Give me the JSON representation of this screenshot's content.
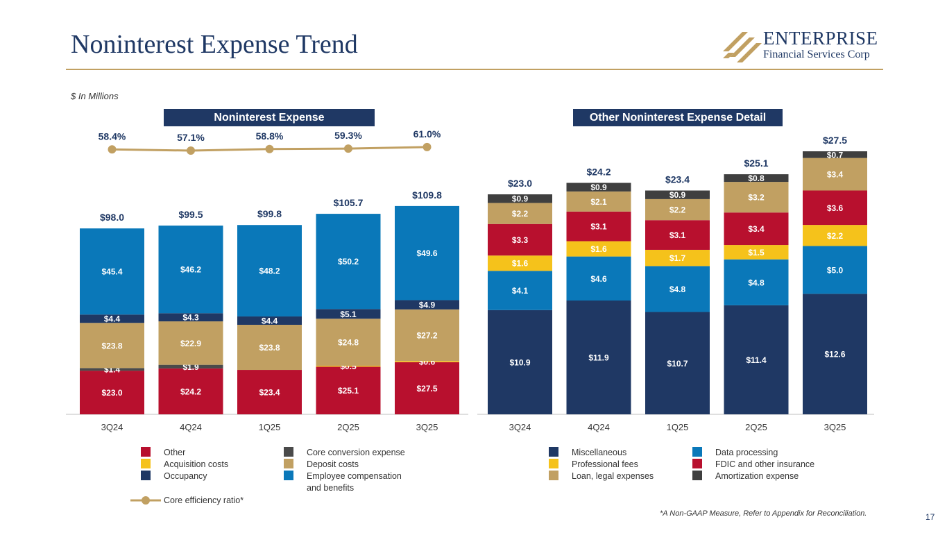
{
  "page": {
    "title": "Noninterest Expense Trend",
    "units_note": "$ In Millions",
    "footnote": "*A Non-GAAP Measure, Refer to Appendix for Reconciliation.",
    "page_number": "17"
  },
  "logo": {
    "name": "ENTERPRISE",
    "subtitle": "Financial Services Corp"
  },
  "colors": {
    "other": "#b8102e",
    "acquisition": "#f5c21b",
    "occupancy": "#1f3864",
    "core_conversion": "#4a4a4a",
    "deposit": "#c1a062",
    "employee": "#0a78b9",
    "misc": "#1f3864",
    "data_processing": "#0a78b9",
    "professional": "#f5c21b",
    "fdic": "#b8102e",
    "loan_legal": "#c1a062",
    "amortization": "#3f3f3f",
    "line": "#c1a062"
  },
  "chart_data": [
    {
      "type": "bar",
      "stacked": true,
      "title": "Noninterest Expense",
      "categories": [
        "3Q24",
        "4Q24",
        "1Q25",
        "2Q25",
        "3Q25"
      ],
      "totals": [
        "$98.0",
        "$99.5",
        "$99.8",
        "$105.7",
        "$109.8"
      ],
      "total_values": [
        98.0,
        99.5,
        99.8,
        105.7,
        109.8
      ],
      "series": [
        {
          "name": "Other",
          "color_key": "other",
          "values": [
            23.0,
            24.2,
            23.4,
            25.1,
            27.5
          ],
          "labels": [
            "$23.0",
            "$24.2",
            "$23.4",
            "$25.1",
            "$27.5"
          ]
        },
        {
          "name": "Acquisition costs",
          "color_key": "acquisition",
          "values": [
            0,
            0,
            0,
            0.5,
            0.6
          ],
          "labels": [
            "",
            "",
            "",
            "$0.5",
            "$0.6"
          ]
        },
        {
          "name": "Core conversion expense",
          "color_key": "core_conversion",
          "values": [
            1.4,
            1.9,
            0,
            0,
            0
          ],
          "labels": [
            "$1.4",
            "$1.9",
            "",
            "",
            ""
          ]
        },
        {
          "name": "Deposit costs",
          "color_key": "deposit",
          "values": [
            23.8,
            22.9,
            23.8,
            24.8,
            27.2
          ],
          "labels": [
            "$23.8",
            "$22.9",
            "$23.8",
            "$24.8",
            "$27.2"
          ]
        },
        {
          "name": "Occupancy",
          "color_key": "occupancy",
          "values": [
            4.4,
            4.3,
            4.4,
            5.1,
            4.9
          ],
          "labels": [
            "$4.4",
            "$4.3",
            "$4.4",
            "$5.1",
            "$4.9"
          ]
        },
        {
          "name": "Employee compensation and benefits",
          "color_key": "employee",
          "values": [
            45.4,
            46.2,
            48.2,
            50.2,
            49.6
          ],
          "labels": [
            "$45.4",
            "$46.2",
            "$48.2",
            "$50.2",
            "$49.6"
          ]
        }
      ],
      "line_series": {
        "name": "Core efficiency ratio*",
        "values": [
          58.4,
          57.1,
          58.8,
          59.3,
          61.0
        ],
        "labels": [
          "58.4%",
          "57.1%",
          "58.8%",
          "59.3%",
          "61.0%"
        ]
      },
      "ylim": [
        0,
        120
      ],
      "legend": [
        [
          "Other",
          "Core conversion expense"
        ],
        [
          "Acquisition costs",
          "Deposit costs"
        ],
        [
          "Occupancy",
          "Employee compensation and benefits"
        ]
      ],
      "legend_position": "bottom"
    },
    {
      "type": "bar",
      "stacked": true,
      "title": "Other Noninterest Expense Detail",
      "categories": [
        "3Q24",
        "4Q24",
        "1Q25",
        "2Q25",
        "3Q25"
      ],
      "totals": [
        "$23.0",
        "$24.2",
        "$23.4",
        "$25.1",
        "$27.5"
      ],
      "total_values": [
        23.0,
        24.2,
        23.4,
        25.1,
        27.5
      ],
      "series": [
        {
          "name": "Miscellaneous",
          "color_key": "misc",
          "values": [
            10.9,
            11.9,
            10.7,
            11.4,
            12.6
          ],
          "labels": [
            "$10.9",
            "$11.9",
            "$10.7",
            "$11.4",
            "$12.6"
          ]
        },
        {
          "name": "Data processing",
          "color_key": "data_processing",
          "values": [
            4.1,
            4.6,
            4.8,
            4.8,
            5.0
          ],
          "labels": [
            "$4.1",
            "$4.6",
            "$4.8",
            "$4.8",
            "$5.0"
          ]
        },
        {
          "name": "Professional fees",
          "color_key": "professional",
          "values": [
            1.6,
            1.6,
            1.7,
            1.5,
            2.2
          ],
          "labels": [
            "$1.6",
            "$1.6",
            "$1.7",
            "$1.5",
            "$2.2"
          ]
        },
        {
          "name": "FDIC and other insurance",
          "color_key": "fdic",
          "values": [
            3.3,
            3.1,
            3.1,
            3.4,
            3.6
          ],
          "labels": [
            "$3.3",
            "$3.1",
            "$3.1",
            "$3.4",
            "$3.6"
          ]
        },
        {
          "name": "Loan, legal expenses",
          "color_key": "loan_legal",
          "values": [
            2.2,
            2.1,
            2.2,
            3.2,
            3.4
          ],
          "labels": [
            "$2.2",
            "$2.1",
            "$2.2",
            "$3.2",
            "$3.4"
          ]
        },
        {
          "name": "Amortization expense",
          "color_key": "amortization",
          "values": [
            0.9,
            0.9,
            0.9,
            0.8,
            0.7
          ],
          "labels": [
            "$0.9",
            "$0.9",
            "$0.9",
            "$0.8",
            "$0.7"
          ]
        }
      ],
      "ylim": [
        0,
        30
      ],
      "legend": [
        [
          "Miscellaneous",
          "Data processing"
        ],
        [
          "Professional fees",
          "FDIC and other insurance"
        ],
        [
          "Loan, legal expenses",
          "Amortization expense"
        ]
      ],
      "legend_position": "bottom"
    }
  ],
  "legend_left": {
    "other": "Other",
    "acquisition": "Acquisition costs",
    "occupancy": "Occupancy",
    "core_conversion": "Core conversion expense",
    "deposit": "Deposit costs",
    "employee_line1": "Employee compensation",
    "employee_line2": "and benefits",
    "efficiency": "Core efficiency ratio*"
  },
  "legend_right": {
    "misc": "Miscellaneous",
    "professional": "Professional fees",
    "loan_legal": "Loan, legal expenses",
    "data_processing": "Data processing",
    "fdic": "FDIC and other insurance",
    "amortization": "Amortization expense"
  }
}
